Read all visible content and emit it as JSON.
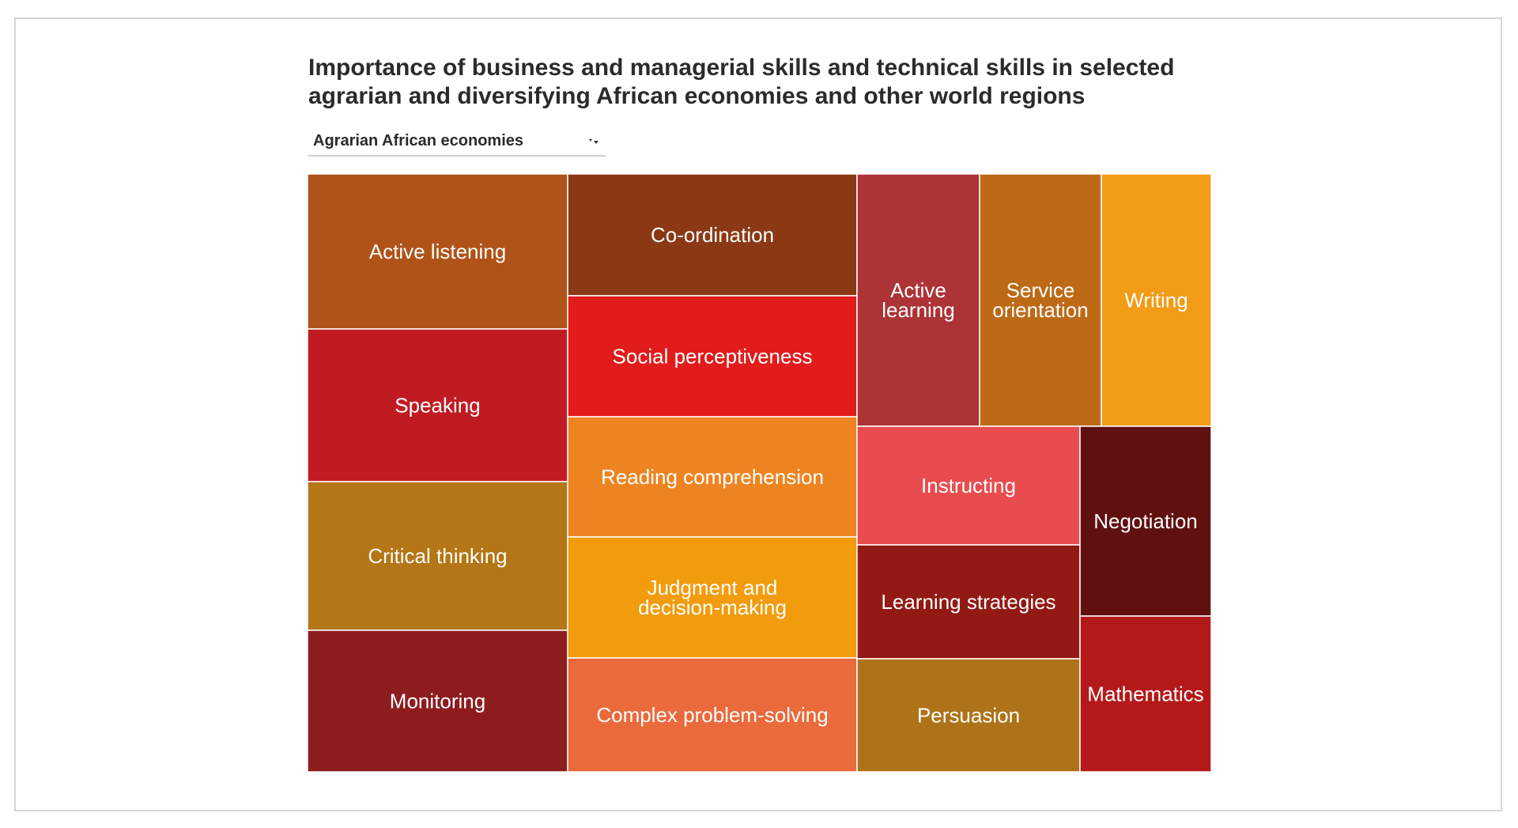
{
  "title": {
    "line1": "Importance of business and managerial skills and technical skills in selected",
    "line2": "agrarian and diversifying African economies and other world regions"
  },
  "selector": {
    "selected": "Agrarian African economies"
  },
  "chart_data": {
    "type": "treemap",
    "title": "Importance of business and managerial skills and technical skills in selected agrarian and diversifying African economies and other world regions",
    "category": "Agrarian African economies",
    "cells": [
      {
        "label": "Active listening",
        "lines": [
          "Active listening"
        ],
        "color": "#b05318"
      },
      {
        "label": "Speaking",
        "lines": [
          "Speaking"
        ],
        "color": "#c11b22"
      },
      {
        "label": "Critical thinking",
        "lines": [
          "Critical thinking"
        ],
        "color": "#b47616"
      },
      {
        "label": "Monitoring",
        "lines": [
          "Monitoring"
        ],
        "color": "#8e1c1e"
      },
      {
        "label": "Co-ordination",
        "lines": [
          "Co-ordination"
        ],
        "color": "#8b3915"
      },
      {
        "label": "Social perceptiveness",
        "lines": [
          "Social perceptiveness"
        ],
        "color": "#e21b1b"
      },
      {
        "label": "Reading comprehension",
        "lines": [
          "Reading comprehension"
        ],
        "color": "#ee8421"
      },
      {
        "label": "Judgment and decision-making",
        "lines": [
          "Judgment and",
          "decision-making"
        ],
        "color": "#f29b0c"
      },
      {
        "label": "Complex problem-solving",
        "lines": [
          "Complex problem-solving"
        ],
        "color": "#ea6a3b"
      },
      {
        "label": "Active learning",
        "lines": [
          "Active",
          "learning"
        ],
        "color": "#ac3336"
      },
      {
        "label": "Service orientation",
        "lines": [
          "Service",
          "orientation"
        ],
        "color": "#bd6a16"
      },
      {
        "label": "Writing",
        "lines": [
          "Writing"
        ],
        "color": "#f29b16"
      },
      {
        "label": "Instructing",
        "lines": [
          "Instructing"
        ],
        "color": "#e84c4f"
      },
      {
        "label": "Learning strategies",
        "lines": [
          "Learning strategies"
        ],
        "color": "#921914"
      },
      {
        "label": "Persuasion",
        "lines": [
          "Persuasion"
        ],
        "color": "#ae7318"
      },
      {
        "label": "Negotiation",
        "lines": [
          "Negotiation"
        ],
        "color": "#611010"
      },
      {
        "label": "Mathematics",
        "lines": [
          "Mathematics"
        ],
        "color": "#b4191a"
      }
    ]
  }
}
